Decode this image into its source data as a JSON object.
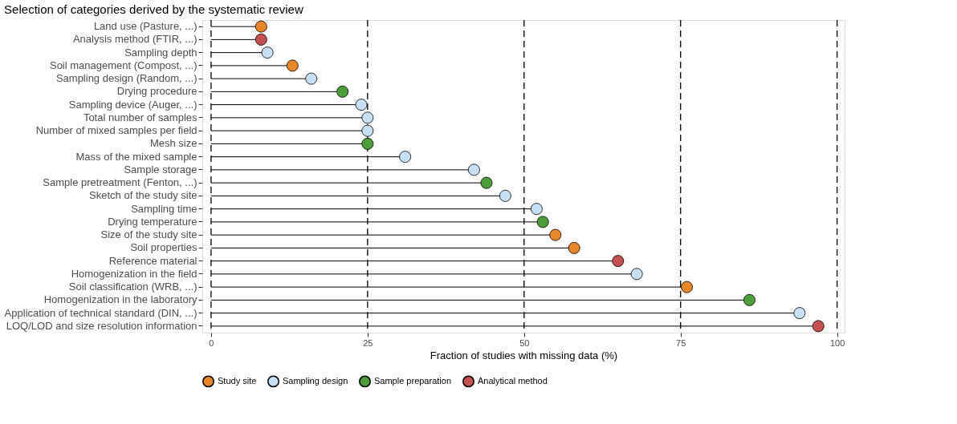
{
  "chart_data": {
    "type": "lollipop",
    "orientation": "horizontal",
    "title": "Selection of categories derived by the systematic review",
    "xlabel": "Fraction of studies with missing data (%)",
    "categories": [
      "Land use (Pasture, ...)",
      "Analysis method (FTIR, ...)",
      "Sampling depth",
      "Soil management (Compost, ...)",
      "Sampling design (Random, ...)",
      "Drying procedure",
      "Sampling device (Auger, ...)",
      "Total number of samples",
      "Number of mixed samples per field",
      "Mesh size",
      "Mass of the mixed sample",
      "Sample storage",
      "Sample pretreatment (Fenton, ...)",
      "Sketch of the study site",
      "Sampling time",
      "Drying temperature",
      "Size of the study site",
      "Soil properties",
      "Reference material",
      "Homogenization in the field",
      "Soil classification (WRB, ...)",
      "Homogenization in the laboratory",
      "Application of technical standard (DIN, ...)",
      "LOQ/LOD and size resolution information"
    ],
    "series": [
      {
        "name": "Study site",
        "color": "#e8862a",
        "values": [
          8,
          null,
          null,
          13,
          null,
          null,
          null,
          null,
          null,
          null,
          null,
          null,
          null,
          null,
          null,
          null,
          55,
          58,
          null,
          null,
          76,
          null,
          null,
          null
        ]
      },
      {
        "name": "Sampling design",
        "color": "#c6dff2",
        "values": [
          null,
          null,
          9,
          null,
          16,
          null,
          24,
          25,
          25,
          null,
          31,
          42,
          null,
          47,
          52,
          null,
          null,
          null,
          null,
          68,
          null,
          null,
          94,
          null
        ]
      },
      {
        "name": "Sample preparation",
        "color": "#4c9e3b",
        "values": [
          null,
          null,
          null,
          null,
          null,
          21,
          null,
          null,
          null,
          25,
          null,
          null,
          44,
          null,
          null,
          53,
          null,
          null,
          null,
          null,
          null,
          86,
          null,
          null
        ]
      },
      {
        "name": "Analytical method",
        "color": "#c4504f",
        "values": [
          null,
          8,
          null,
          null,
          null,
          null,
          null,
          null,
          null,
          null,
          null,
          null,
          null,
          null,
          null,
          null,
          null,
          null,
          65,
          null,
          null,
          null,
          null,
          97
        ]
      }
    ],
    "xlim": [
      -1.4,
      101.2
    ],
    "xticks": [
      0,
      25,
      50,
      75,
      100
    ],
    "ref_lines": [
      {
        "axis": "x",
        "value": 0,
        "line_style": "dashed"
      },
      {
        "axis": "x",
        "value": 25,
        "line_style": "dashed"
      },
      {
        "axis": "x",
        "value": 50,
        "line_style": "dashed"
      },
      {
        "axis": "x",
        "value": 75,
        "line_style": "dashed"
      },
      {
        "axis": "x",
        "value": 100,
        "line_style": "dashed"
      }
    ],
    "grid": false,
    "legend": "bottom",
    "marker": "circle"
  }
}
